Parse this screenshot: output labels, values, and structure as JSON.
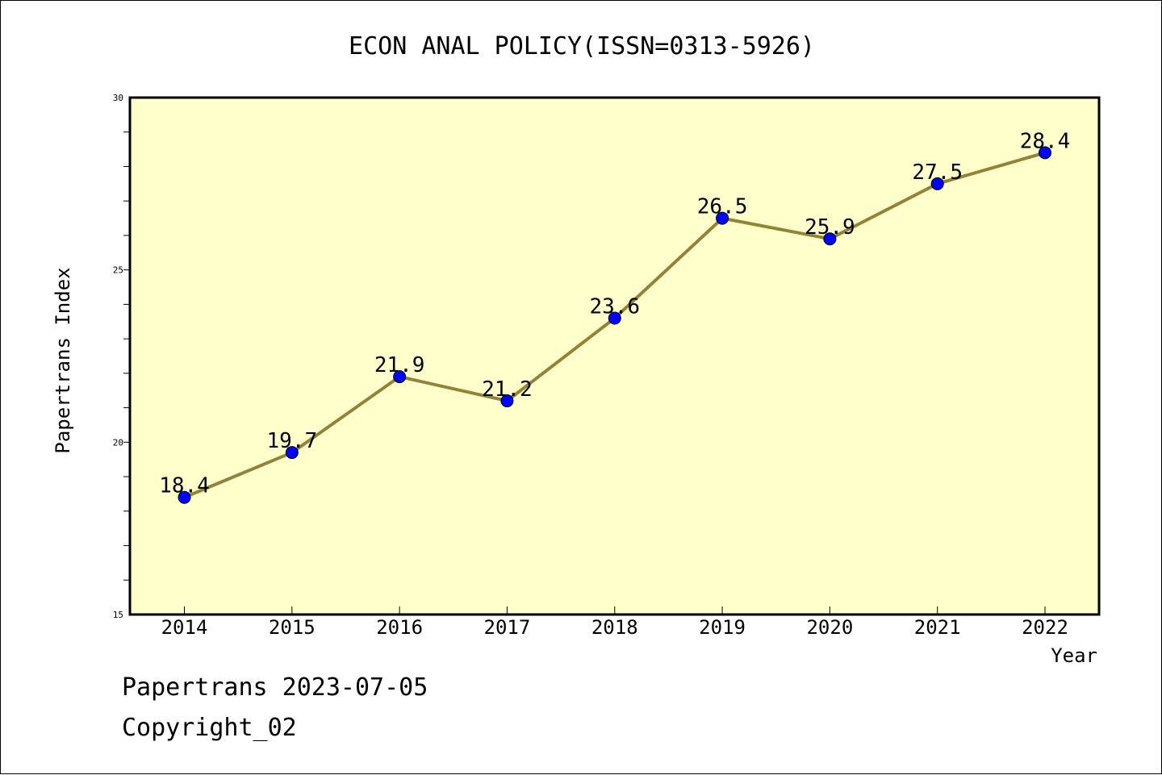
{
  "chart_data": {
    "type": "line",
    "title": "ECON ANAL POLICY(ISSN=0313-5926)",
    "xlabel": "Year",
    "ylabel": "Papertrans Index",
    "categories": [
      "2014",
      "2015",
      "2016",
      "2017",
      "2018",
      "2019",
      "2020",
      "2021",
      "2022"
    ],
    "series": [
      {
        "values": [
          18.4,
          19.7,
          21.9,
          21.2,
          23.6,
          26.5,
          25.9,
          27.5,
          28.4
        ]
      }
    ],
    "data_labels": [
      "18.4",
      "19.7",
      "21.9",
      "21.2",
      "23.6",
      "26.5",
      "25.9",
      "27.5",
      "28.4"
    ],
    "ylim": [
      15,
      30
    ],
    "yticks": [
      15,
      20,
      25,
      30
    ],
    "ytick_labels": [
      "15",
      "20",
      "25",
      "30"
    ],
    "grid": false,
    "legend": "none",
    "colors": {
      "plot_background": "#ffffcc",
      "line": "#948236",
      "marker": "#0000ff",
      "frame": "#000000"
    }
  },
  "footer": {
    "line1": "Papertrans 2023-07-05",
    "line2": "Copyright_02"
  }
}
